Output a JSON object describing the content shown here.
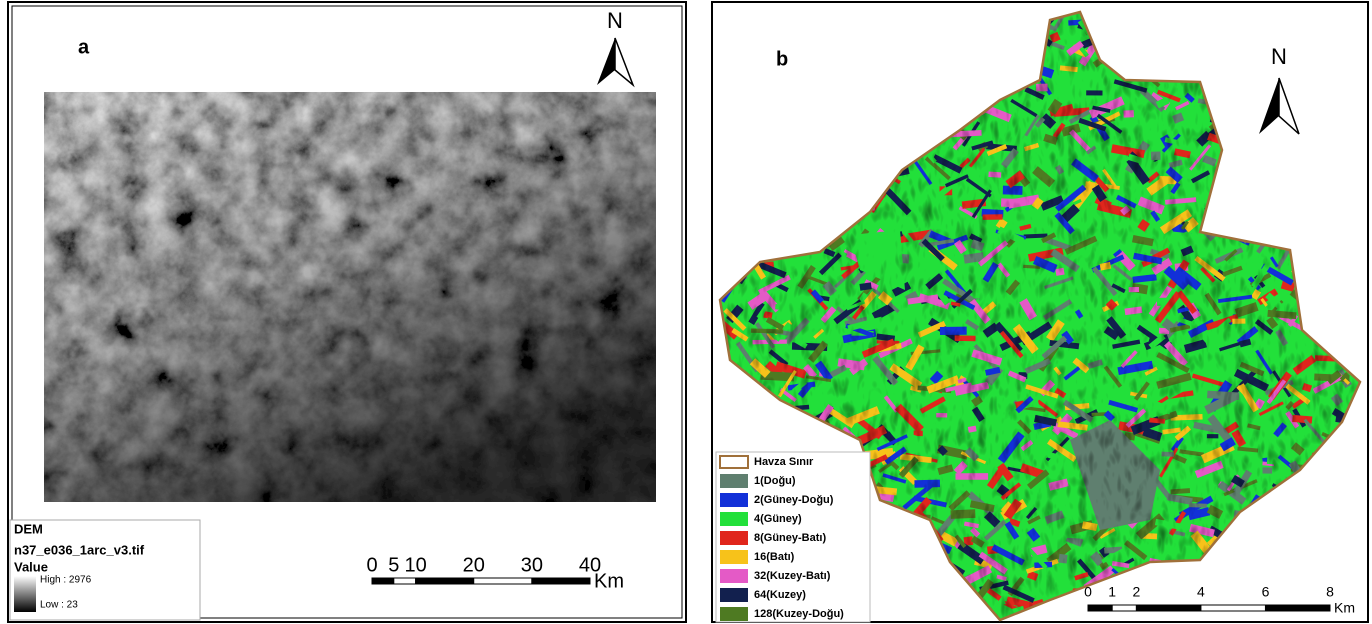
{
  "panel_a": {
    "label": "a",
    "north": "N",
    "legend": {
      "title": "DEM",
      "layer": "n37_e036_1arc_v3.tif",
      "field": "Value",
      "high": "High : 2976",
      "low": "Low : 23"
    },
    "scale": {
      "ticks": [
        "0",
        "5",
        "10",
        "20",
        "30",
        "40"
      ],
      "unit": "Km"
    }
  },
  "panel_b": {
    "label": "b",
    "north": "N",
    "legend": [
      {
        "label": "Havza Sınır",
        "color": "#a0703a",
        "outline": true
      },
      {
        "label": "1(Doğu)",
        "color": "#5f7f6f"
      },
      {
        "label": "2(Güney-Doğu)",
        "color": "#1230d8"
      },
      {
        "label": "4(Güney)",
        "color": "#22e03a"
      },
      {
        "label": "8(Güney-Batı)",
        "color": "#e0261c"
      },
      {
        "label": "16(Batı)",
        "color": "#f7c21a"
      },
      {
        "label": "32(Kuzey-Batı)",
        "color": "#e45ac6"
      },
      {
        "label": "64(Kuzey)",
        "color": "#12204e"
      },
      {
        "label": "128(Kuzey-Doğu)",
        "color": "#4e7a22"
      }
    ],
    "scale": {
      "ticks": [
        "0",
        "1",
        "2",
        "4",
        "6",
        "8"
      ],
      "unit": "Km"
    }
  }
}
